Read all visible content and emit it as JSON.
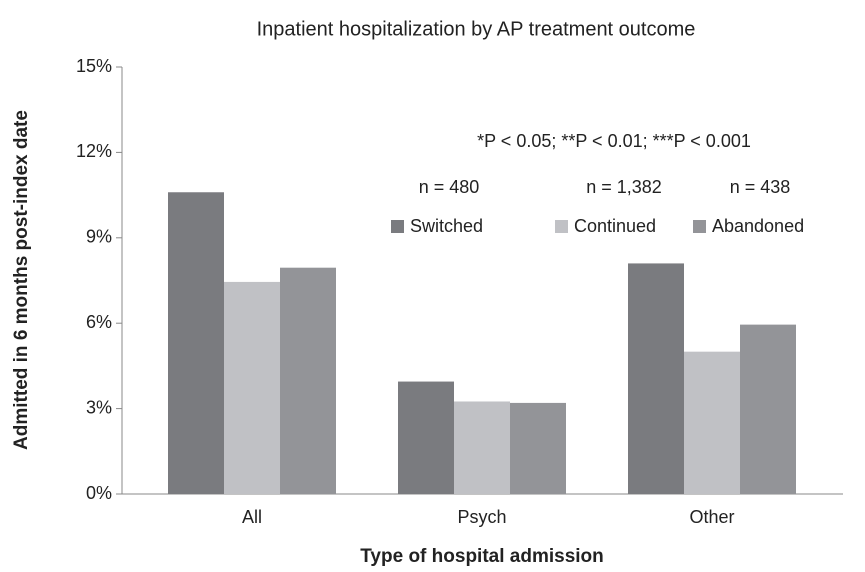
{
  "chart_data": {
    "type": "bar",
    "title": "Inpatient hospitalization by AP treatment outcome",
    "x_label": "Type of hospital admission",
    "y_label": "Admitted in 6 months post-index date",
    "annotation": "*P < 0.05;  **P < 0.01;  ***P < 0.001",
    "categories": [
      "All",
      "Psych",
      "Other"
    ],
    "series": [
      {
        "name": "Switched",
        "n_label": "n = 480",
        "color": "#7a7b7f",
        "values": [
          10.6,
          3.95,
          8.1
        ]
      },
      {
        "name": "Continued",
        "n_label": "n = 1,382",
        "color": "#c0c1c5",
        "values": [
          7.45,
          3.25,
          5.0
        ]
      },
      {
        "name": "Abandoned",
        "n_label": "n = 438",
        "color": "#939498",
        "values": [
          7.95,
          3.2,
          5.95
        ]
      }
    ],
    "ylim": [
      0,
      15
    ],
    "yticks": [
      {
        "value": 0,
        "label": "0%"
      },
      {
        "value": 3,
        "label": "3%"
      },
      {
        "value": 6,
        "label": "6%"
      },
      {
        "value": 9,
        "label": "9%"
      },
      {
        "value": 12,
        "label": "12%"
      },
      {
        "value": 15,
        "label": "15%"
      }
    ],
    "grid": false,
    "legend": "upper right"
  }
}
